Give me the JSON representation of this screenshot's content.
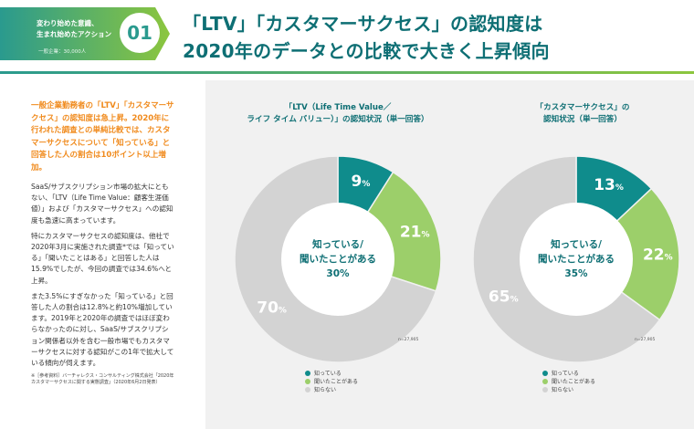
{
  "header": {
    "badge_line1": "変わり始めた意識、",
    "badge_line2": "生まれ始めたアクション",
    "badge_small": "一般企業：30,000人",
    "badge_number": "01",
    "title_line1": "「LTV」「カスタマーサクセス」の認知度は",
    "title_line2": "2020年のデータとの比較で大きく上昇傾向"
  },
  "text": {
    "lead": "一般企業勤務者の「LTV」「カスタマーサクセス」の認知度は急上昇。2020年に行われた調査との単純比較では、カスタマーサクセスについて「知っている」と回答した人の割合は10ポイント以上増加。",
    "para1": "SaaS/サブスクリプション市場の拡大にともない、「LTV（Life Time Value：顧客生涯価値）」および「カスタマーサクセス」への認知度も急速に高まっています。",
    "para2": "特にカスタマーサクセスの認知度は、他社で2020年3月に実施された調査*では「知っている」「聞いたことはある」と回答した人は15.9%でしたが、今回の調査では34.6%へと上昇。",
    "para3": "また3.5%にすぎなかった「知っている」と回答した人の割合は12.8%と約10%増加しています。2019年と2020年の調査ではほぼ変わらなかったのに対し、SaaS/サブスクリプション関係者以外を含む一般市場でもカスタマーサクセスに対する認知がこの1年で拡大している傾向が伺えます。",
    "ref": "※［参考資料］バーチャレクス・コンサルティング株式会社「2020年カスタマーサクセスに関する実態調査」（2020年6月2日発表）"
  },
  "colors": {
    "teal": "#0f8c8c",
    "green": "#9ccf6a",
    "gray": "#d3d3d3",
    "title": "#0e6f74",
    "accent_orange": "#f08a1c"
  },
  "chart_data": [
    {
      "type": "pie",
      "title_line1": "「LTV（Life Time Value／",
      "title_line2": "ライフ タイム バリュー）」の認知状況（単一回答）",
      "center_line1": "知っている/",
      "center_line2": "聞いたことがある",
      "center_value": "30%",
      "categories": [
        "知っている",
        "聞いたことがある",
        "知らない"
      ],
      "values": [
        9,
        21,
        70
      ],
      "unit": "%",
      "n_note": "n=27,905",
      "legend_position": "bottom"
    },
    {
      "type": "pie",
      "title_line1": "「カスタマーサクセス」の",
      "title_line2": "認知状況（単一回答）",
      "center_line1": "知っている/",
      "center_line2": "聞いたことがある",
      "center_value": "35%",
      "categories": [
        "知っている",
        "聞いたことがある",
        "知らない"
      ],
      "values": [
        13,
        22,
        65
      ],
      "unit": "%",
      "n_note": "n=27,905",
      "legend_position": "bottom"
    }
  ]
}
